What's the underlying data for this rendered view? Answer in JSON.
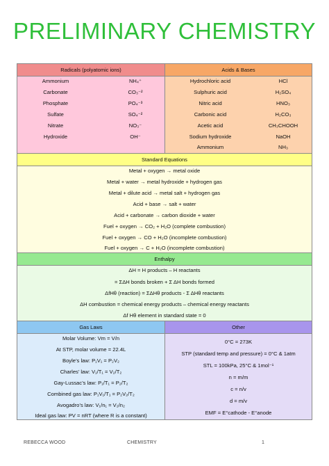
{
  "title": "PRELIMINARY CHEMISTRY",
  "radicals": {
    "header": "Radicals (polyatomic ions)",
    "rows": [
      {
        "name": "Ammonium",
        "formula": "NH₄⁺"
      },
      {
        "name": "Carbonate",
        "formula": "CO₃⁻²"
      },
      {
        "name": "Phosphate",
        "formula": "PO₄⁻³"
      },
      {
        "name": "Sulfate",
        "formula": "SO₄⁻²"
      },
      {
        "name": "Nitrate",
        "formula": "NO₃⁻"
      },
      {
        "name": "Hydroxide",
        "formula": "OH⁻"
      }
    ]
  },
  "acids": {
    "header": "Acids & Bases",
    "rows": [
      {
        "name": "Hydrochloric acid",
        "formula": "HCl"
      },
      {
        "name": "Sulphuric acid",
        "formula": "H₂SO₄"
      },
      {
        "name": "Nitric acid",
        "formula": "HNO₃"
      },
      {
        "name": "Carbonic acid",
        "formula": "H₂CO₃"
      },
      {
        "name": "Acetic acid",
        "formula": "CH₃CHOOH"
      },
      {
        "name": "Sodium hydroxide",
        "formula": "NaOH"
      },
      {
        "name": "Ammonium",
        "formula": "NH₃"
      }
    ]
  },
  "equations": {
    "header": "Standard Equations",
    "rows": [
      "Metal + oxygen → metal oxide",
      "Metal + water → metal hydroxide + hydrogen gas",
      "Metal + dilute acid → metal salt + hydrogen gas",
      "Acid + base → salt + water",
      "Acid + carbonate → carbon dioxide + water",
      "Fuel + oxygen → CO₂ + H₂O (complete combustion)",
      "Fuel + oxygen → CO + H₂O (incomplete combustion)",
      "Fuel + oxygen → C + H₂O (incomplete combustion)"
    ]
  },
  "enthalpy": {
    "header": "Enthalpy",
    "rows": [
      "ΔH = H products – H reactants",
      "= ΣΔH bonds broken + Σ ΔH bonds formed",
      "ΔfHθ (reaction) = ΣΔHθ products - Σ ΔHθ reactants",
      "ΔH combustion = chemical energy products – chemical energy reactants",
      "Δf Hθ element in standard state = 0"
    ]
  },
  "gas_laws": {
    "header": "Gas Laws",
    "rows": [
      "Molar Volume: Vm = V/n",
      "At STP, molar volume = 22.4L",
      "Boyle’s law: P₁V₁ = P₂V₂",
      "Charles’ law: V₁/T₁ = V₂/T₂",
      "Gay-Lussac’s law: P₁/T₁ = P₂/T₂",
      "Combined gas law: P₁V₁/T₁ = P₂V₂/T₂",
      "Avogadro’s law: V₁/n₁ = V₂/n₂",
      "Ideal gas law: PV = nRT (where R is a constant)"
    ]
  },
  "other": {
    "header": "Other",
    "rows": [
      "0°C = 273K",
      "STP (standard temp and pressure) = 0°C & 1atm",
      "STL = 100kPa, 25°C & 1mol⁻¹",
      "n = m/m",
      "c = n/v",
      "d = m/v",
      "EMF = E°cathode - E°anode"
    ]
  },
  "footer": {
    "left": "REBECCA WOOD",
    "center": "CHEMISTRY",
    "right": "1"
  },
  "colors": {
    "title": "#2fbf3a",
    "radicals": "#ffc8dc",
    "radicals_header": "#f08c8c",
    "acids": "#fdd2ad",
    "acids_header": "#f7a766",
    "equations": "#fffde0",
    "equations_header": "#ffff86",
    "enthalpy": "#eafae5",
    "enthalpy_header": "#96e990",
    "gas": "#dcecfb",
    "gas_header": "#8ec7f1",
    "other": "#e4dcf7",
    "other_header": "#a895ec"
  }
}
